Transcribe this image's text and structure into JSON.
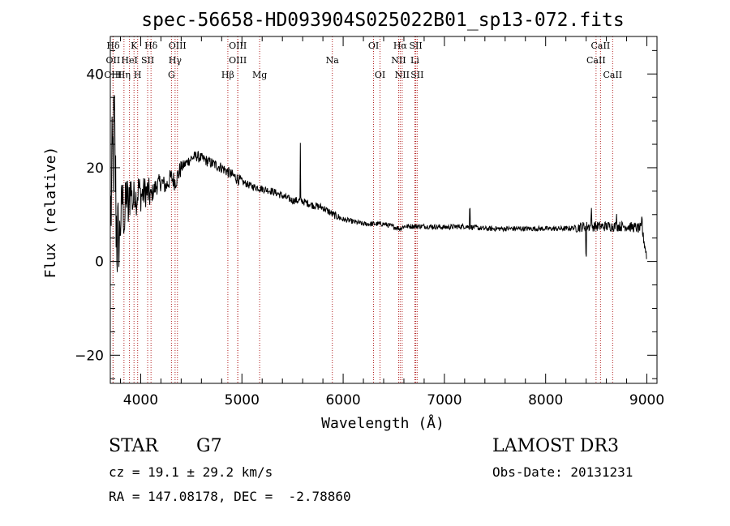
{
  "chart_data": {
    "type": "line",
    "title": "spec-56658-HD093904S025022B01_sp13-072.fits",
    "xlabel": "Wavelength (Å)",
    "ylabel": "Flux (relative)",
    "xlim": [
      3700,
      9100
    ],
    "ylim": [
      -26,
      48
    ],
    "xticks": [
      4000,
      5000,
      6000,
      7000,
      8000,
      9000
    ],
    "xtick_labels": [
      "4000",
      "5000",
      "6000",
      "7000",
      "8000",
      "9000"
    ],
    "yticks": [
      -20,
      0,
      20,
      40
    ],
    "ytick_labels": [
      "−20",
      "0",
      "20",
      "40"
    ],
    "grid": false,
    "line_color": "#000000",
    "marker_color": "#b22222",
    "spectrum_anchors": [
      [
        3705,
        10
      ],
      [
        3720,
        20
      ],
      [
        3740,
        28
      ],
      [
        3760,
        8
      ],
      [
        3780,
        2
      ],
      [
        3800,
        8
      ],
      [
        3820,
        14
      ],
      [
        3840,
        8
      ],
      [
        3860,
        15
      ],
      [
        3880,
        10
      ],
      [
        3900,
        17
      ],
      [
        3920,
        12
      ],
      [
        3940,
        15
      ],
      [
        3960,
        13
      ],
      [
        3980,
        16
      ],
      [
        4000,
        14
      ],
      [
        4050,
        15
      ],
      [
        4100,
        14
      ],
      [
        4150,
        16
      ],
      [
        4200,
        17
      ],
      [
        4250,
        16
      ],
      [
        4300,
        18
      ],
      [
        4340,
        17
      ],
      [
        4400,
        20
      ],
      [
        4450,
        21
      ],
      [
        4500,
        22
      ],
      [
        4550,
        22.5
      ],
      [
        4600,
        22
      ],
      [
        4700,
        21
      ],
      [
        4800,
        20
      ],
      [
        4900,
        18.5
      ],
      [
        5000,
        17
      ],
      [
        5100,
        16
      ],
      [
        5200,
        15.5
      ],
      [
        5300,
        15
      ],
      [
        5400,
        14
      ],
      [
        5500,
        13
      ],
      [
        5580,
        13
      ],
      [
        5700,
        12
      ],
      [
        5800,
        11.5
      ],
      [
        5900,
        10
      ],
      [
        6000,
        9
      ],
      [
        6200,
        8
      ],
      [
        6400,
        8
      ],
      [
        6563,
        7
      ],
      [
        6600,
        7.5
      ],
      [
        6800,
        7.5
      ],
      [
        7000,
        7.3
      ],
      [
        7200,
        7.5
      ],
      [
        7400,
        7
      ],
      [
        7600,
        7
      ],
      [
        7800,
        7
      ],
      [
        8000,
        7
      ],
      [
        8200,
        7
      ],
      [
        8400,
        7.5
      ],
      [
        8600,
        7.5
      ],
      [
        8800,
        7.5
      ],
      [
        8950,
        7
      ],
      [
        9000,
        1
      ]
    ],
    "spectrum_features": [
      [
        5577,
        12
      ],
      [
        7250,
        4
      ],
      [
        8400,
        -6
      ],
      [
        8450,
        3
      ],
      [
        8700,
        2
      ],
      [
        8950,
        2
      ]
    ],
    "lines": [
      {
        "label": "Hδ",
        "wave": 3728,
        "row": 0
      },
      {
        "label": "K",
        "wave": 3934,
        "row": 0
      },
      {
        "label": "Hδ",
        "wave": 4102,
        "row": 0
      },
      {
        "label": "OIII",
        "wave": 4363,
        "row": 0
      },
      {
        "label": "OIII",
        "wave": 4959,
        "row": 0
      },
      {
        "label": "OI",
        "wave": 6300,
        "row": 0
      },
      {
        "label": "Hα",
        "wave": 6563,
        "row": 0
      },
      {
        "label": "SII",
        "wave": 6717,
        "row": 0
      },
      {
        "label": "CaII",
        "wave": 8542,
        "row": 0
      },
      {
        "label": "OII",
        "wave": 3727,
        "row": 1
      },
      {
        "label": "HeI",
        "wave": 3889,
        "row": 1
      },
      {
        "label": "SII",
        "wave": 4069,
        "row": 1
      },
      {
        "label": "Hγ",
        "wave": 4340,
        "row": 1
      },
      {
        "label": "OIII",
        "wave": 4959,
        "row": 1
      },
      {
        "label": "Na",
        "wave": 5893,
        "row": 1
      },
      {
        "label": "NII",
        "wave": 6548,
        "row": 1
      },
      {
        "label": "Li",
        "wave": 6708,
        "row": 1
      },
      {
        "label": "CaII",
        "wave": 8498,
        "row": 1
      },
      {
        "label": "OIII",
        "wave": 3727,
        "row": 2
      },
      {
        "label": "Hη",
        "wave": 3835,
        "row": 2
      },
      {
        "label": "H",
        "wave": 3970,
        "row": 2
      },
      {
        "label": "G",
        "wave": 4304,
        "row": 2
      },
      {
        "label": "Hβ",
        "wave": 4861,
        "row": 2
      },
      {
        "label": "Mg",
        "wave": 5175,
        "row": 2
      },
      {
        "label": "OI",
        "wave": 6364,
        "row": 2
      },
      {
        "label": "NII",
        "wave": 6583,
        "row": 2
      },
      {
        "label": "SII",
        "wave": 6731,
        "row": 2
      },
      {
        "label": "CaII",
        "wave": 8662,
        "row": 2
      }
    ]
  },
  "info": {
    "object_class": "STAR",
    "subclass": "G7",
    "survey": "LAMOST DR3",
    "cz": "cz = 19.1 ± 29.2 km/s",
    "obs_date": "Obs-Date: 20131231",
    "coords": "RA = 147.08178, DEC =  -2.78860"
  }
}
